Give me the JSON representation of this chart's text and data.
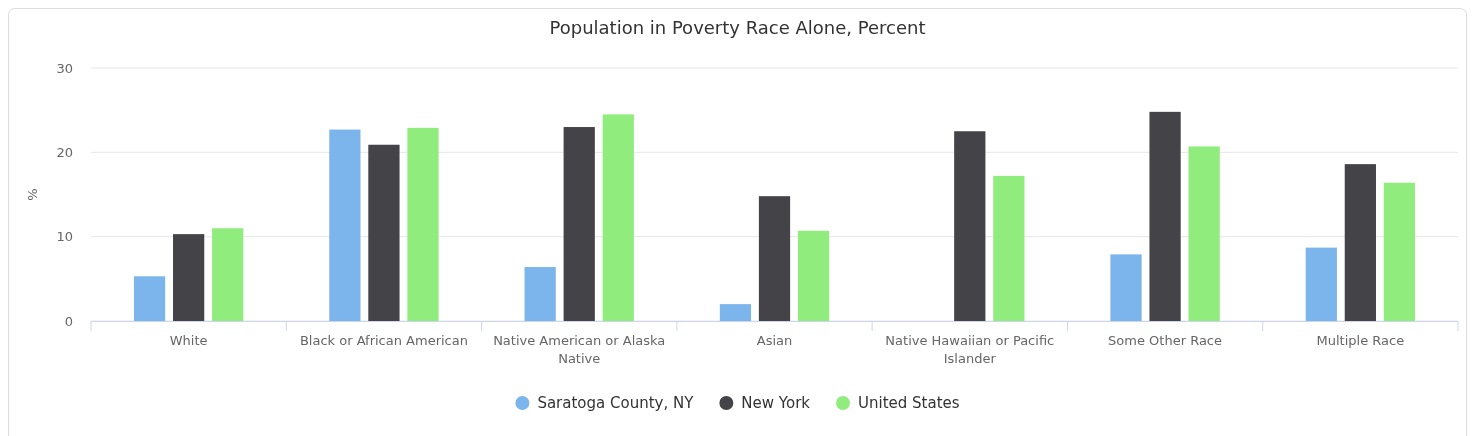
{
  "chart_data": {
    "type": "bar",
    "title": "Population in Poverty Race Alone, Percent",
    "ylabel": "%",
    "categories": [
      "White",
      "Black or African American",
      "Native American or Alaska Native",
      "Asian",
      "Native Hawaiian or Pacific Islander",
      "Some Other Race",
      "Multiple Race"
    ],
    "series": [
      {
        "name": "Saratoga County, NY",
        "color": "#7cb5ec",
        "values": [
          5.3,
          22.7,
          6.4,
          2.0,
          null,
          7.9,
          8.7
        ]
      },
      {
        "name": "New York",
        "color": "#434348",
        "values": [
          10.3,
          20.9,
          23.0,
          14.8,
          22.5,
          24.8,
          18.6
        ]
      },
      {
        "name": "United States",
        "color": "#90ed7d",
        "values": [
          11.0,
          22.9,
          24.5,
          10.7,
          17.2,
          20.7,
          16.4
        ]
      }
    ],
    "ylim": [
      0,
      30
    ],
    "yticks": [
      0,
      10,
      20,
      30
    ],
    "grid": "y",
    "legend": "bottom"
  }
}
